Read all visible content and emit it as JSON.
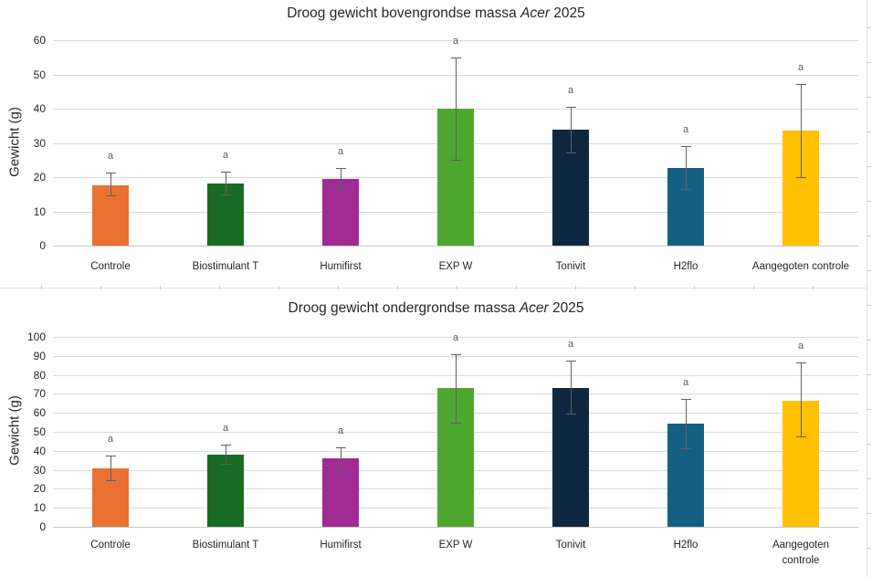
{
  "colors": {
    "bar_palette": [
      "#E97132",
      "#196B24",
      "#A02B93",
      "#4EA72E",
      "#0E2841",
      "#156082",
      "#FFC000"
    ],
    "gridline": "#D9D9D9",
    "error_bar": "#5F5F5F",
    "significance_letter": "#595959",
    "text": "#262626",
    "background": "#FFFFFF"
  },
  "chart_data": [
    {
      "type": "bar",
      "title": "Droog gewicht bovengrondse massa Acer 2025",
      "title_runs": [
        {
          "text": "Droog gewicht bovengrondse massa ",
          "italic": false
        },
        {
          "text": "Acer",
          "italic": true
        },
        {
          "text": " 2025",
          "italic": false
        }
      ],
      "xlabel": "",
      "ylabel": "Gewicht (g)",
      "ylim": [
        0,
        60
      ],
      "ytick_step": 10,
      "ytick_labels": [
        "0",
        "10",
        "20",
        "30",
        "40",
        "50",
        "60"
      ],
      "grid": true,
      "legend": "none",
      "categories": [
        "Controle",
        "Biostimulant T",
        "Humifirst",
        "EXP W",
        "Tonivit",
        "H2flo",
        "Aangegoten controle"
      ],
      "values": [
        17.7,
        18.2,
        19.4,
        40.0,
        33.8,
        22.6,
        33.5
      ],
      "error_low": [
        14.7,
        15.0,
        16.3,
        25.0,
        27.3,
        16.5,
        20.0
      ],
      "error_high": [
        21.3,
        21.5,
        22.7,
        55.0,
        40.6,
        29.0,
        47.3
      ],
      "significance_letters": [
        "a",
        "a",
        "a",
        "a",
        "a",
        "a",
        "a"
      ]
    },
    {
      "type": "bar",
      "title": "Droog gewicht ondergrondse massa Acer 2025",
      "title_runs": [
        {
          "text": "Droog gewicht ondergrondse massa ",
          "italic": false
        },
        {
          "text": "Acer",
          "italic": true
        },
        {
          "text": " 2025",
          "italic": false
        }
      ],
      "xlabel": "",
      "ylabel": "Gewicht (g)",
      "ylim": [
        0,
        100
      ],
      "ytick_step": 10,
      "ytick_labels": [
        "0",
        "10",
        "20",
        "30",
        "40",
        "50",
        "60",
        "70",
        "80",
        "90",
        "100"
      ],
      "grid": true,
      "legend": "none",
      "categories": [
        "Controle",
        "Biostimulant T",
        "Humifirst",
        "EXP W",
        "Tonivit",
        "H2flo",
        "Aangegoten controle"
      ],
      "values": [
        31.0,
        38.0,
        36.0,
        73.0,
        73.3,
        54.5,
        66.5
      ],
      "error_low": [
        24.5,
        33.0,
        29.8,
        55.0,
        59.5,
        41.5,
        47.5
      ],
      "error_high": [
        37.7,
        43.3,
        42.0,
        91.0,
        87.5,
        67.5,
        86.5
      ],
      "significance_letters": [
        "a",
        "a",
        "a",
        "a",
        "a",
        "a",
        "a"
      ]
    }
  ]
}
